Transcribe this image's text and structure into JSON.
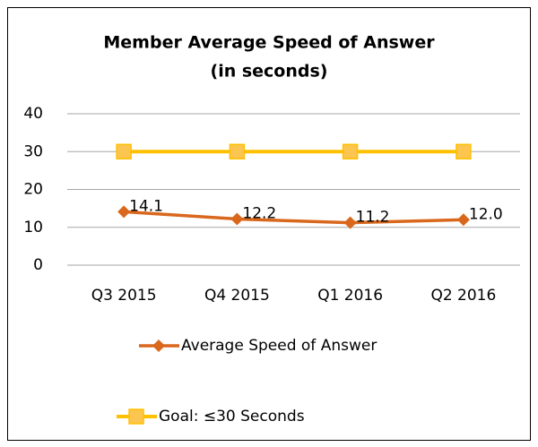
{
  "chart_data": {
    "type": "line",
    "title": [
      "Member Average Speed of Answer",
      "(in seconds)"
    ],
    "categories": [
      "Q3 2015",
      "Q4 2015",
      "Q1 2016",
      "Q2 2016"
    ],
    "series": [
      {
        "name": "Average Speed of Answer",
        "color": "#d9671c",
        "marker": "diamond",
        "values": [
          14.1,
          12.2,
          11.2,
          12.0
        ],
        "value_labels": [
          "14.1",
          "12.2",
          "11.2",
          "12.0"
        ]
      },
      {
        "name": "Goal:  ≤30 Seconds",
        "color": "#ffc000",
        "marker": "square",
        "values": [
          30,
          30,
          30,
          30
        ]
      }
    ],
    "ylim": [
      0,
      40
    ],
    "yticks": [
      0,
      10,
      20,
      30,
      40
    ],
    "grid": true,
    "legend": "bottom"
  }
}
